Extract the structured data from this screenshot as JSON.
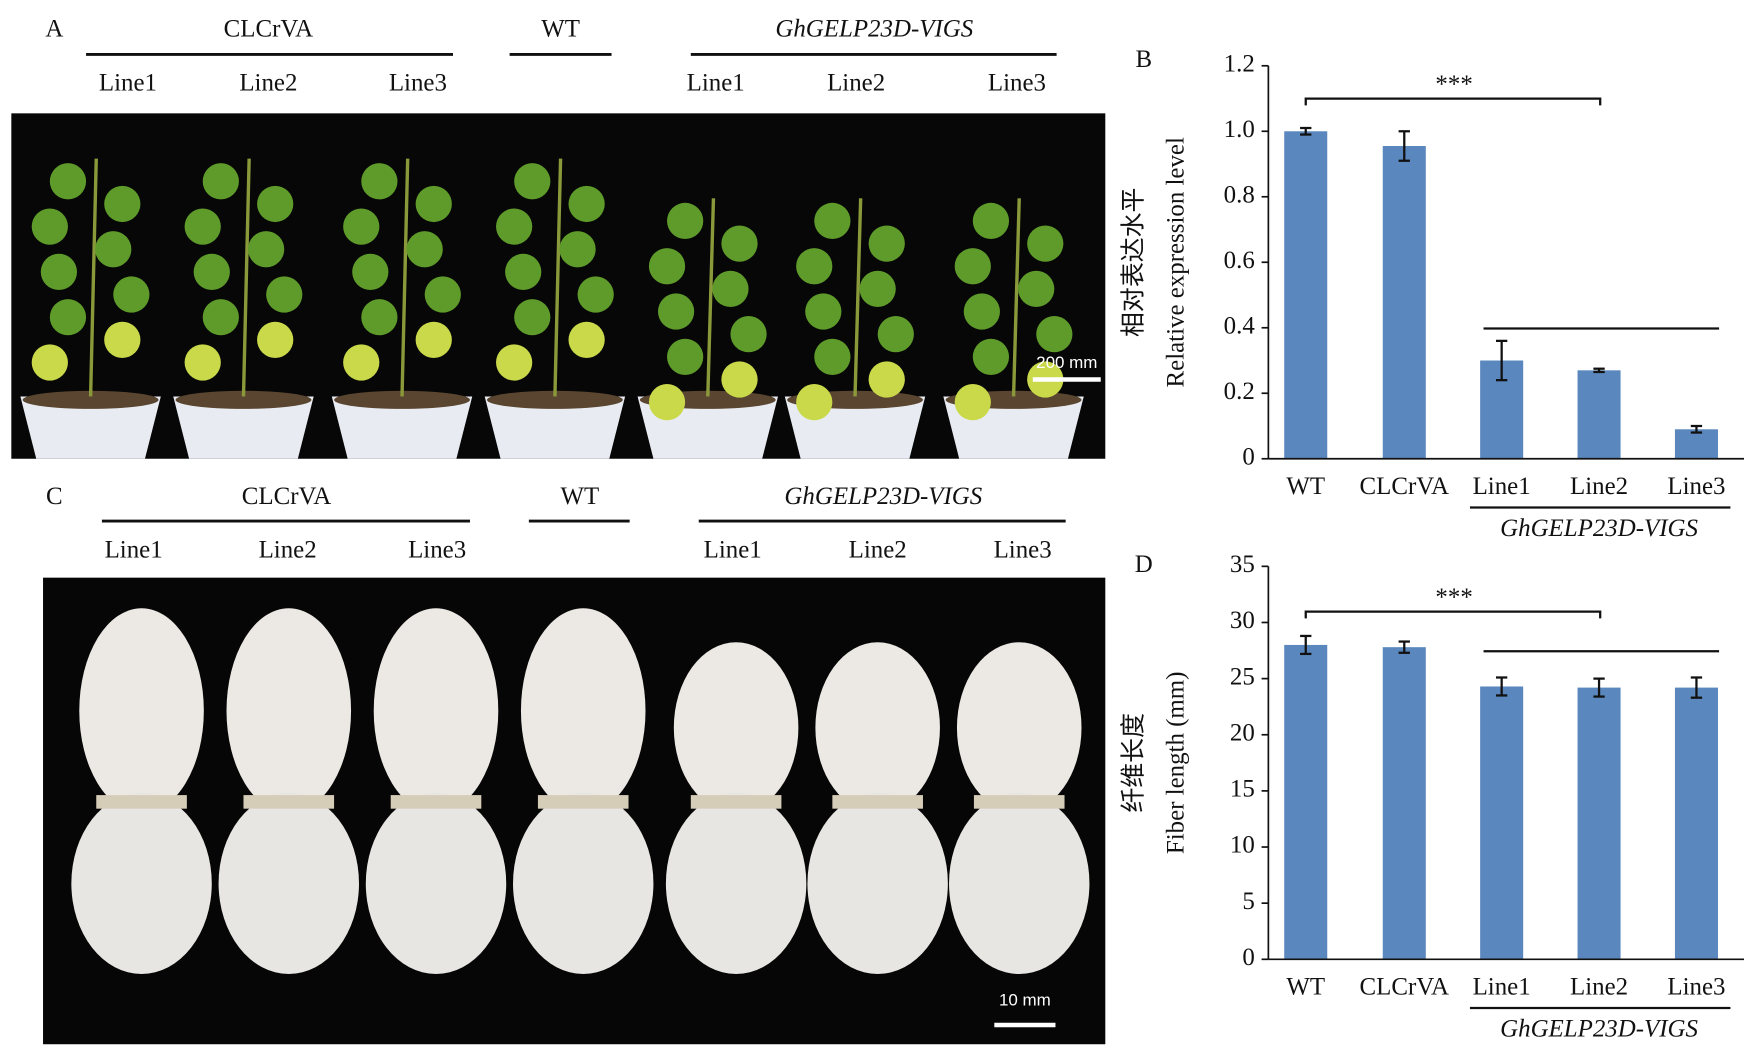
{
  "panel_a": {
    "label": "A",
    "groups": [
      {
        "name": "CLCrVA",
        "lines": [
          "Line1",
          "Line2",
          "Line3"
        ]
      },
      {
        "name": "WT"
      },
      {
        "name": "GhGELP23D-VIGS",
        "lines": [
          "Line1",
          "Line2",
          "Line3"
        ]
      }
    ],
    "scale_bar": "200 mm"
  },
  "panel_c": {
    "label": "C",
    "groups": [
      {
        "name": "CLCrVA",
        "lines": [
          "Line1",
          "Line2",
          "Line3"
        ]
      },
      {
        "name": "WT"
      },
      {
        "name": "GhGELP23D-VIGS",
        "lines": [
          "Line1",
          "Line2",
          "Line3"
        ]
      }
    ],
    "scale_bar": "10 mm"
  },
  "chart_data": [
    {
      "type": "bar",
      "panel": "B",
      "y_label": [
        "相对表达水平",
        "Relative expression level"
      ],
      "categories": [
        "WT",
        "CLCrVA",
        "Line1",
        "Line2",
        "Line3"
      ],
      "group_label": "GhGELP23D-VIGS",
      "values": [
        1.0,
        0.955,
        0.3,
        0.27,
        0.09
      ],
      "errors": [
        0.01,
        0.045,
        0.06,
        0.005,
        0.01
      ],
      "color": "#5a87bd",
      "significance": "***",
      "ylim": [
        0,
        1.2
      ],
      "yticks": [
        0,
        0.2,
        0.4,
        0.6,
        0.8,
        {
          "value": 1,
          "label": "1.0"
        },
        1.2
      ]
    },
    {
      "type": "bar",
      "panel": "D",
      "y_label": [
        "纤维长度",
        "Fiber length (mm)"
      ],
      "categories": [
        "WT",
        "CLCrVA",
        "Line1",
        "Line2",
        "Line3"
      ],
      "group_label": "GhGELP23D-VIGS",
      "values": [
        28,
        27.8,
        24.3,
        24.2,
        24.2
      ],
      "errors": [
        0.8,
        0.5,
        0.8,
        0.8,
        0.9
      ],
      "color": "#5a87bd",
      "significance": "***",
      "ylim": [
        0,
        35
      ],
      "yticks": [
        0,
        5,
        10,
        15,
        20,
        25,
        30,
        35
      ]
    }
  ]
}
